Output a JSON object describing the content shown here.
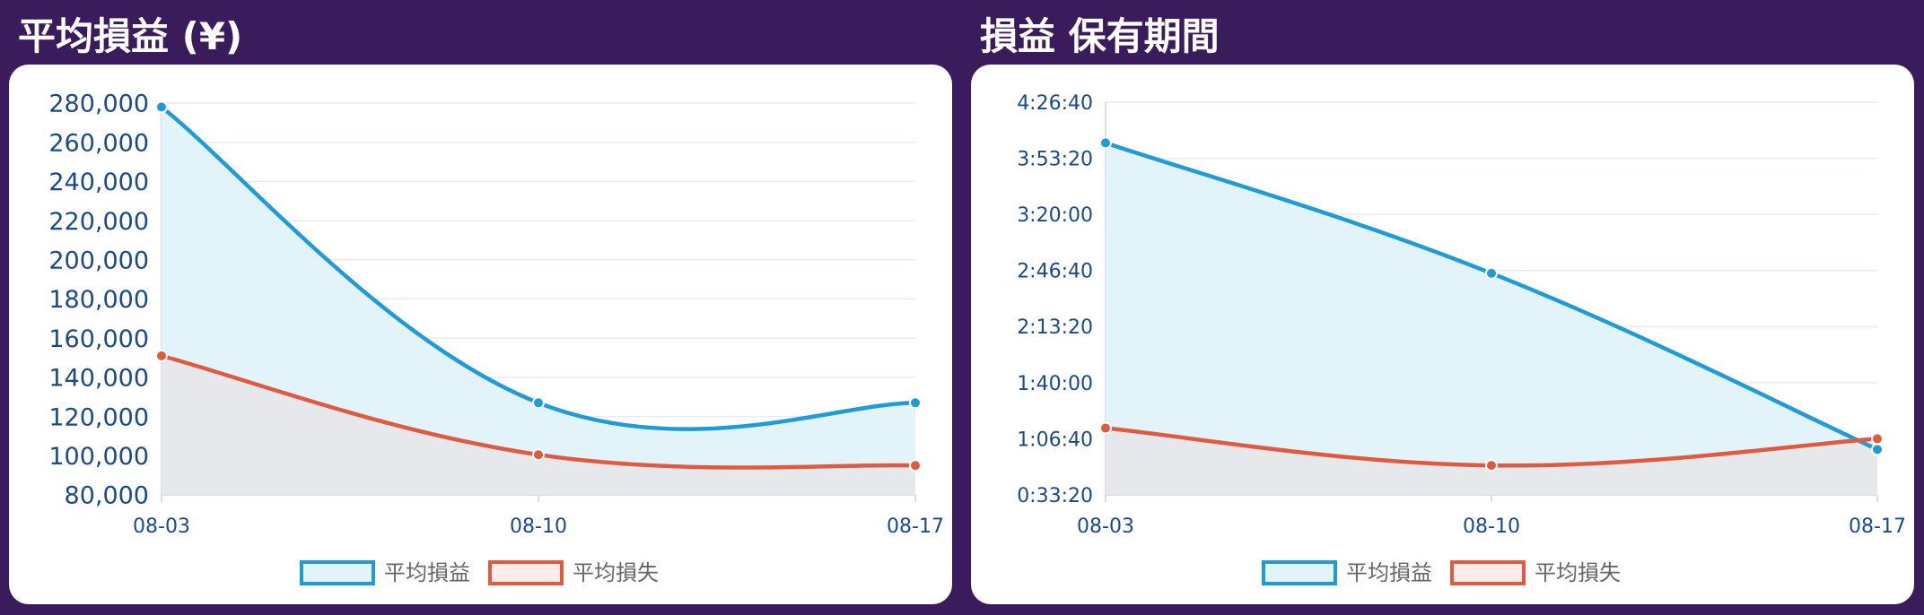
{
  "panels": {
    "left_title": "平均損益 (¥)",
    "right_title": "損益 保有期間"
  },
  "legend": {
    "avg_profit": "平均損益",
    "avg_loss": "平均損失"
  },
  "colors": {
    "background": "#3a1c5c",
    "profit_line": "#1f9bd7",
    "profit_fill": "#e3f3fa",
    "loss_line": "#e05a40",
    "loss_fill": "#e6e7ea",
    "axis_text": "#1a4a8a"
  },
  "chart_data": [
    {
      "type": "area",
      "title": "平均損益 (¥)",
      "categories": [
        "08-03",
        "08-10",
        "08-17"
      ],
      "ylim": [
        80000,
        280000
      ],
      "yticks": [
        80000,
        100000,
        120000,
        140000,
        160000,
        180000,
        200000,
        220000,
        240000,
        260000,
        280000
      ],
      "ytick_labels": [
        "80,000",
        "100,000",
        "120,000",
        "140,000",
        "160,000",
        "180,000",
        "200,000",
        "220,000",
        "240,000",
        "260,000",
        "280,000"
      ],
      "grid": true,
      "legend_position": "bottom",
      "series": [
        {
          "name": "平均損益",
          "values": [
            278000,
            127000,
            127000
          ]
        },
        {
          "name": "平均損失",
          "values": [
            151000,
            100500,
            95000
          ]
        }
      ]
    },
    {
      "type": "area",
      "title": "損益 保有期間",
      "categories": [
        "08-03",
        "08-10",
        "08-17"
      ],
      "ylim": [
        2000,
        16000
      ],
      "yticks": [
        2000,
        4000,
        6000,
        8000,
        10000,
        12000,
        14000,
        16000
      ],
      "ytick_labels": [
        "0:33:20",
        "1:06:40",
        "1:40:00",
        "2:13:20",
        "2:46:40",
        "3:20:00",
        "3:53:20",
        "4:26:40"
      ],
      "grid": true,
      "legend_position": "bottom",
      "series": [
        {
          "name": "平均損益",
          "values": [
            14550,
            9900,
            3620
          ]
        },
        {
          "name": "平均損失",
          "values": [
            4380,
            3050,
            4000
          ]
        }
      ]
    }
  ]
}
